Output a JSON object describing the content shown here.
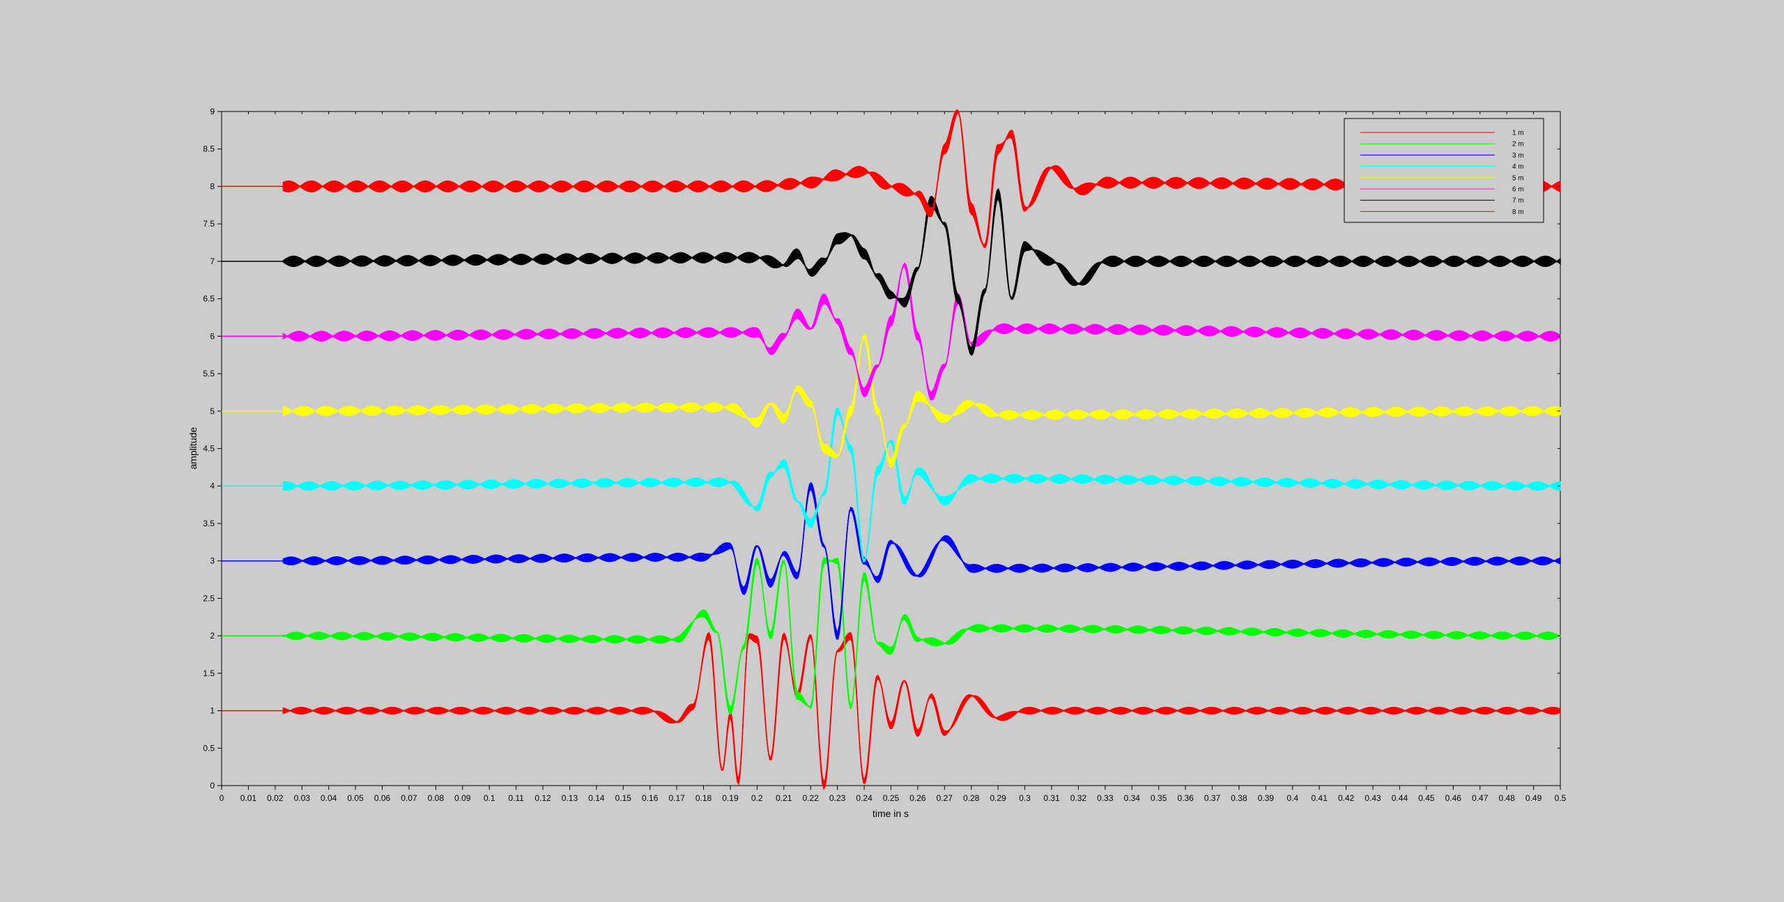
{
  "chart_data": {
    "type": "line",
    "title": "",
    "xlabel": "time in s",
    "ylabel": "amplitude",
    "xlim": [
      0,
      0.5
    ],
    "ylim": [
      0,
      9
    ],
    "xticks": [
      "0",
      "0.01",
      "0.02",
      "0.03",
      "0.04",
      "0.05",
      "0.06",
      "0.07",
      "0.08",
      "0.09",
      "0.1",
      "0.11",
      "0.12",
      "0.13",
      "0.14",
      "0.15",
      "0.16",
      "0.17",
      "0.18",
      "0.19",
      "0.2",
      "0.21",
      "0.22",
      "0.23",
      "0.24",
      "0.25",
      "0.26",
      "0.27",
      "0.28",
      "0.29",
      "0.3",
      "0.31",
      "0.32",
      "0.33",
      "0.34",
      "0.35",
      "0.36",
      "0.37",
      "0.38",
      "0.39",
      "0.4",
      "0.41",
      "0.42",
      "0.43",
      "0.44",
      "0.45",
      "0.46",
      "0.47",
      "0.48",
      "0.49",
      "0.5"
    ],
    "yticks": [
      "0",
      "0.5",
      "1",
      "1.5",
      "2",
      "2.5",
      "3",
      "3.5",
      "4",
      "4.5",
      "5",
      "5.5",
      "6",
      "6.5",
      "7",
      "7.5",
      "8",
      "8.5",
      "9"
    ],
    "grid": false,
    "legend_position": "top-right",
    "series": [
      {
        "name": "1 m",
        "color": "#ff0000",
        "baseline": 1,
        "x": [
          0,
          0.023,
          0.16,
          0.17,
          0.176,
          0.182,
          0.187,
          0.19,
          0.193,
          0.197,
          0.2,
          0.205,
          0.21,
          0.215,
          0.22,
          0.225,
          0.23,
          0.235,
          0.24,
          0.245,
          0.25,
          0.255,
          0.26,
          0.265,
          0.27,
          0.28,
          0.29,
          0.3,
          0.5
        ],
        "y": [
          1,
          1,
          1,
          0.85,
          1.05,
          2.0,
          0.2,
          0.95,
          0.05,
          2.0,
          1.95,
          0.35,
          2.0,
          1.2,
          2.0,
          0.0,
          1.8,
          2.0,
          0.05,
          1.45,
          0.8,
          1.4,
          0.7,
          1.2,
          0.7,
          1.2,
          0.9,
          1.0,
          1.0
        ]
      },
      {
        "name": "2 m",
        "color": "#00ff00",
        "baseline": 2,
        "x": [
          0,
          0.023,
          0.17,
          0.18,
          0.185,
          0.19,
          0.195,
          0.2,
          0.205,
          0.21,
          0.215,
          0.22,
          0.225,
          0.23,
          0.235,
          0.24,
          0.245,
          0.25,
          0.255,
          0.26,
          0.27,
          0.28,
          0.5
        ],
        "y": [
          2,
          2,
          1.95,
          2.3,
          2.05,
          1.0,
          1.85,
          3.0,
          2.0,
          3.0,
          1.2,
          1.05,
          3.0,
          3.0,
          1.05,
          2.8,
          1.9,
          1.8,
          2.25,
          1.95,
          1.9,
          2.1,
          2.0
        ]
      },
      {
        "name": "3 m",
        "color": "#0000ff",
        "baseline": 3,
        "x": [
          0,
          0.023,
          0.18,
          0.19,
          0.195,
          0.2,
          0.205,
          0.21,
          0.215,
          0.22,
          0.225,
          0.23,
          0.235,
          0.24,
          0.245,
          0.25,
          0.26,
          0.27,
          0.28,
          0.5
        ],
        "y": [
          3,
          3,
          3.05,
          3.2,
          2.6,
          3.2,
          2.7,
          3.1,
          2.8,
          4.0,
          3.2,
          2.0,
          3.7,
          3.0,
          2.75,
          3.25,
          2.8,
          3.3,
          2.9,
          3.0
        ]
      },
      {
        "name": "4 m",
        "color": "#00ffff",
        "baseline": 4,
        "x": [
          0,
          0.023,
          0.19,
          0.2,
          0.205,
          0.21,
          0.215,
          0.22,
          0.225,
          0.23,
          0.235,
          0.24,
          0.245,
          0.25,
          0.255,
          0.26,
          0.27,
          0.28,
          0.5
        ],
        "y": [
          4,
          4,
          4.05,
          3.7,
          4.15,
          4.3,
          3.8,
          3.5,
          3.9,
          5.0,
          4.5,
          3.0,
          4.2,
          4.6,
          3.8,
          4.2,
          3.8,
          4.1,
          4.0
        ]
      },
      {
        "name": "5 m",
        "color": "#ffff00",
        "baseline": 5,
        "x": [
          0,
          0.023,
          0.19,
          0.2,
          0.205,
          0.21,
          0.215,
          0.22,
          0.225,
          0.23,
          0.235,
          0.24,
          0.245,
          0.25,
          0.255,
          0.26,
          0.27,
          0.28,
          0.29,
          0.5
        ],
        "y": [
          5,
          5,
          5.05,
          4.85,
          5.1,
          4.9,
          5.3,
          5.1,
          4.5,
          4.4,
          5.0,
          6.0,
          5.0,
          4.3,
          4.8,
          5.2,
          4.9,
          5.1,
          4.95,
          5.0
        ]
      },
      {
        "name": "6 m",
        "color": "#ff00ff",
        "baseline": 6,
        "x": [
          0,
          0.023,
          0.2,
          0.205,
          0.21,
          0.215,
          0.22,
          0.225,
          0.23,
          0.235,
          0.24,
          0.245,
          0.25,
          0.255,
          0.26,
          0.265,
          0.27,
          0.275,
          0.28,
          0.29,
          0.5
        ],
        "y": [
          6,
          6,
          6.05,
          5.8,
          6.0,
          6.3,
          6.1,
          6.5,
          6.2,
          5.8,
          5.25,
          5.6,
          6.2,
          6.95,
          6.0,
          5.2,
          5.6,
          6.5,
          5.9,
          6.1,
          6.0
        ]
      },
      {
        "name": "7 m",
        "color": "#000000",
        "baseline": 7,
        "x": [
          0,
          0.023,
          0.2,
          0.21,
          0.215,
          0.22,
          0.225,
          0.23,
          0.235,
          0.24,
          0.245,
          0.25,
          0.255,
          0.26,
          0.265,
          0.27,
          0.275,
          0.28,
          0.285,
          0.29,
          0.295,
          0.3,
          0.31,
          0.32,
          0.33,
          0.5
        ],
        "y": [
          7,
          7,
          7.05,
          6.95,
          7.1,
          6.85,
          7.0,
          7.3,
          7.35,
          7.1,
          6.8,
          6.55,
          6.45,
          6.9,
          7.8,
          7.5,
          6.5,
          5.8,
          6.6,
          7.9,
          6.5,
          7.2,
          7.0,
          6.7,
          7.0,
          7.0
        ]
      },
      {
        "name": "8 m",
        "color": "#ff0000",
        "baseline": 8,
        "x": [
          0,
          0.023,
          0.2,
          0.22,
          0.23,
          0.24,
          0.25,
          0.26,
          0.265,
          0.27,
          0.275,
          0.28,
          0.285,
          0.29,
          0.295,
          0.3,
          0.31,
          0.32,
          0.33,
          0.5
        ],
        "y": [
          8,
          8,
          8.0,
          8.05,
          8.15,
          8.2,
          8.0,
          7.9,
          7.65,
          8.5,
          9.0,
          7.7,
          7.2,
          8.5,
          8.7,
          7.7,
          8.25,
          7.95,
          8.05,
          8.0
        ]
      }
    ]
  }
}
